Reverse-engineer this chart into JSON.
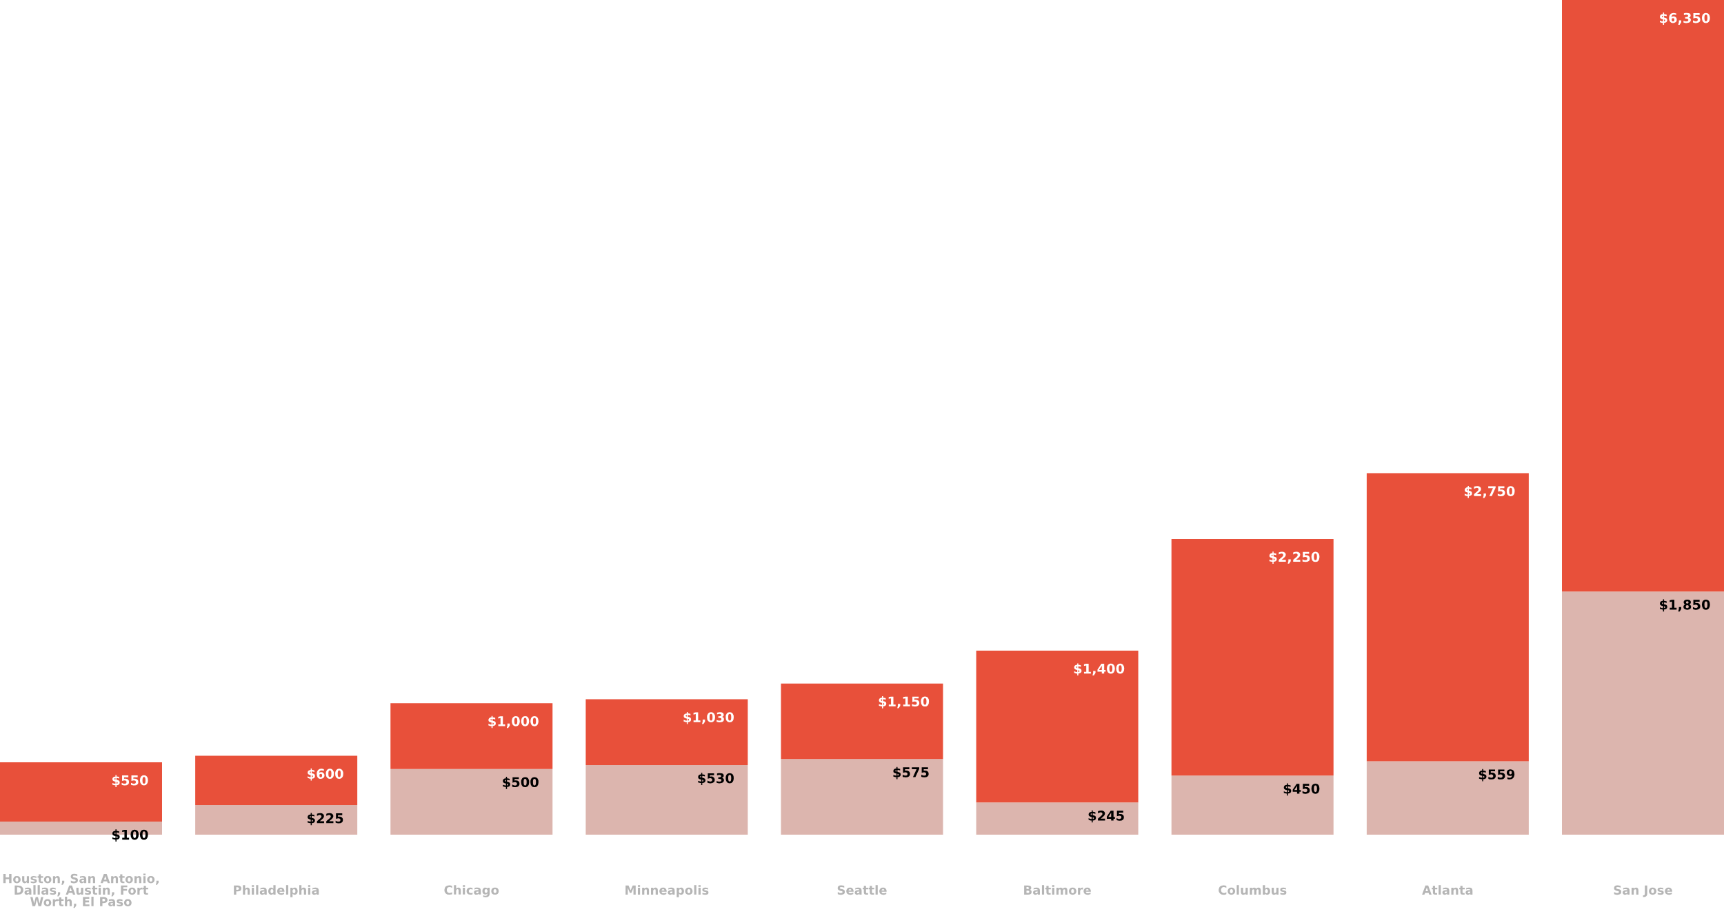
{
  "chart_data": {
    "type": "bar",
    "stacked": true,
    "tick_labels": "x",
    "categories": [
      "Houston, San Antonio, Dallas, Austin, Fort Worth, El Paso",
      "Philadelphia",
      "Chicago",
      "Minneapolis",
      "Seattle",
      "Baltimore",
      "Columbus",
      "Atlanta",
      "San Jose"
    ],
    "series": [
      {
        "color": "#dcb5ae",
        "values": [
          100,
          225,
          500,
          530,
          575,
          245,
          450,
          559,
          1850
        ],
        "value_labels": [
          "$100",
          "$225",
          "$500",
          "$530",
          "$575",
          "$245",
          "$450",
          "$559",
          "$1,850"
        ]
      },
      {
        "color": "#e8503a",
        "values": [
          450,
          375,
          500,
          500,
          575,
          1155,
          1800,
          2191,
          4500
        ]
      }
    ],
    "totals": [
      "$550",
      "$600",
      "$1,000",
      "$1,030",
      "$1,150",
      "$1,400",
      "$2,250",
      "$2,750",
      "$6,350"
    ]
  }
}
